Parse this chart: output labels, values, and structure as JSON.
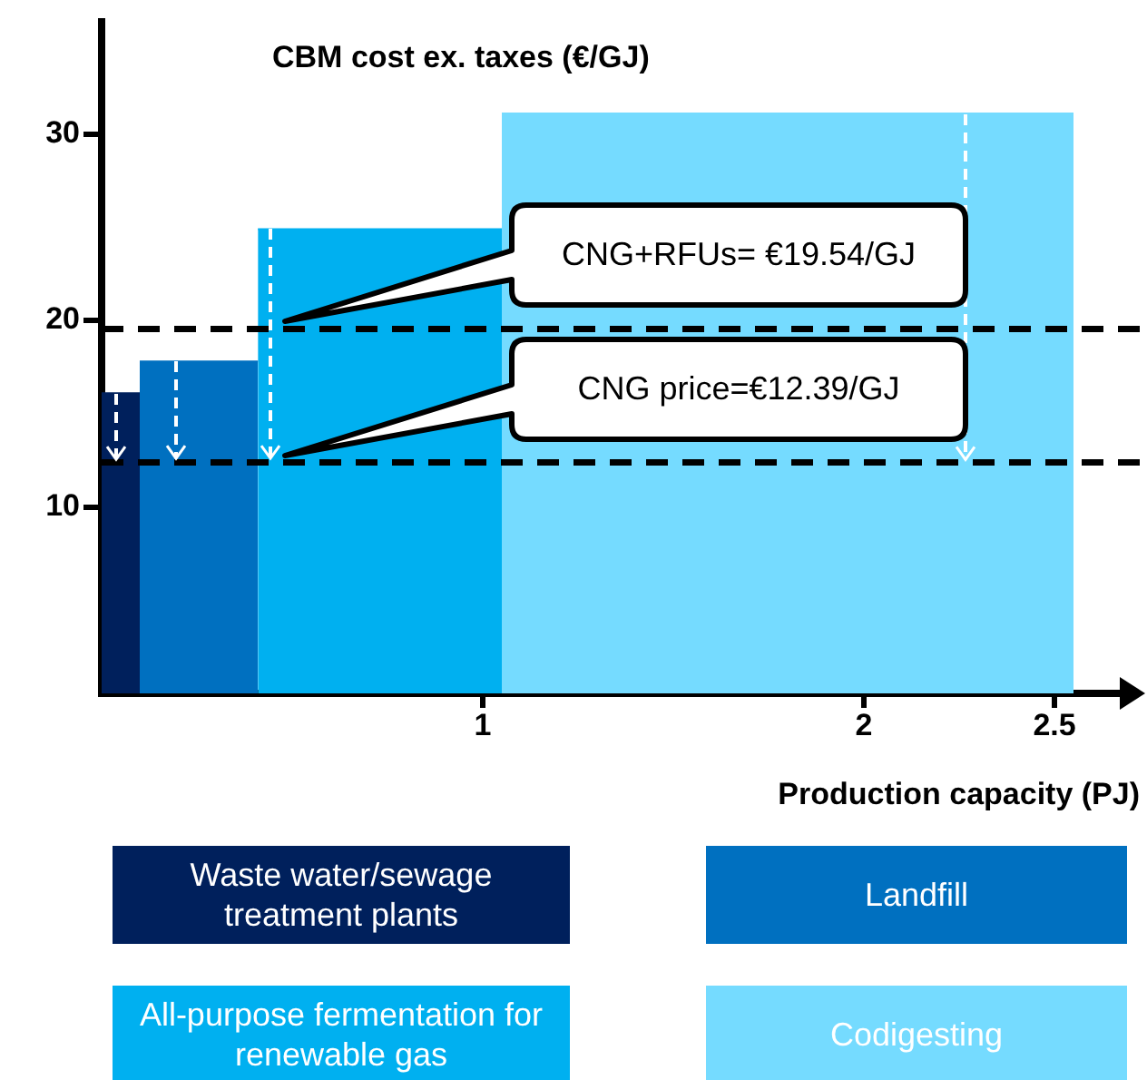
{
  "chart_data": {
    "type": "area",
    "ylabel": "CBM cost ex. taxes (€/GJ)",
    "xlabel": "Production capacity (PJ)",
    "xlim": [
      0,
      2.7
    ],
    "xticks": [
      1,
      2,
      2.5
    ],
    "ylim": [
      0,
      36
    ],
    "yticks": [
      10,
      20,
      30
    ],
    "grid": false,
    "legend": "bottom",
    "series": [
      {
        "name": "Waste water/sewage treatment plants",
        "color": "#00205c",
        "x": [
          0,
          0.1
        ],
        "values": [
          16.1,
          16.1
        ]
      },
      {
        "name": "Landfill",
        "color": "#0070c0",
        "x": [
          0.1,
          0.41
        ],
        "values": [
          17.8,
          17.8
        ]
      },
      {
        "name": "All-purpose fermentation for renewable gas",
        "color": "#00b0f0",
        "x": [
          0.41,
          1.05
        ],
        "values": [
          24.9,
          24.9
        ]
      },
      {
        "name": "Codigesting",
        "color": "#75dbff",
        "x": [
          1.05,
          2.55
        ],
        "values": [
          31.1,
          31.1
        ]
      }
    ],
    "ref_lines": [
      {
        "axis": "y",
        "value": 19.54,
        "label": "CNG+RFUs= €19.54/GJ",
        "color": "#000000",
        "line_style": "dashed"
      },
      {
        "axis": "y",
        "value": 12.39,
        "label": "CNG price=€12.39/GJ",
        "color": "#000000",
        "line_style": "dashed"
      }
    ]
  }
}
